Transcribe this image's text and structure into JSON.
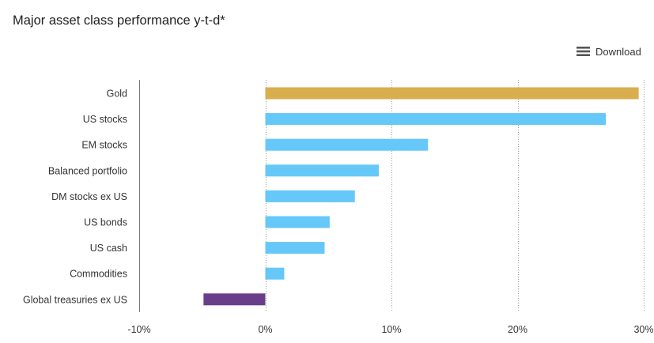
{
  "title": "Major asset class performance y-t-d*",
  "toolbar": {
    "download_label": "Download",
    "download_icon": "menu-icon"
  },
  "colors": {
    "gold": "#d9ae4f",
    "default_bar": "#66c7f9",
    "negative_bar": "#6a3d8a",
    "grid": "#9a9a9a",
    "axis": "#777777"
  },
  "chart_data": {
    "type": "bar",
    "orientation": "horizontal",
    "title": "Major asset class performance y-t-d*",
    "xlabel": "",
    "ylabel": "",
    "unit": "%",
    "xlim": [
      -10,
      30
    ],
    "x_ticks": [
      "-10%",
      "0%",
      "10%",
      "20%",
      "30%"
    ],
    "x_tick_values": [
      -10,
      0,
      10,
      20,
      30
    ],
    "grid": true,
    "grid_style": "dotted",
    "categories": [
      "Gold",
      "US stocks",
      "EM stocks",
      "Balanced portfolio",
      "DM stocks ex US",
      "US bonds",
      "US cash",
      "Commodities",
      "Global treasuries ex US"
    ],
    "values": [
      29.6,
      27.0,
      12.9,
      9.0,
      7.1,
      5.1,
      4.7,
      1.5,
      -4.9
    ],
    "bar_colors": [
      "#d9ae4f",
      "#66c7f9",
      "#66c7f9",
      "#66c7f9",
      "#66c7f9",
      "#66c7f9",
      "#66c7f9",
      "#66c7f9",
      "#6a3d8a"
    ]
  }
}
